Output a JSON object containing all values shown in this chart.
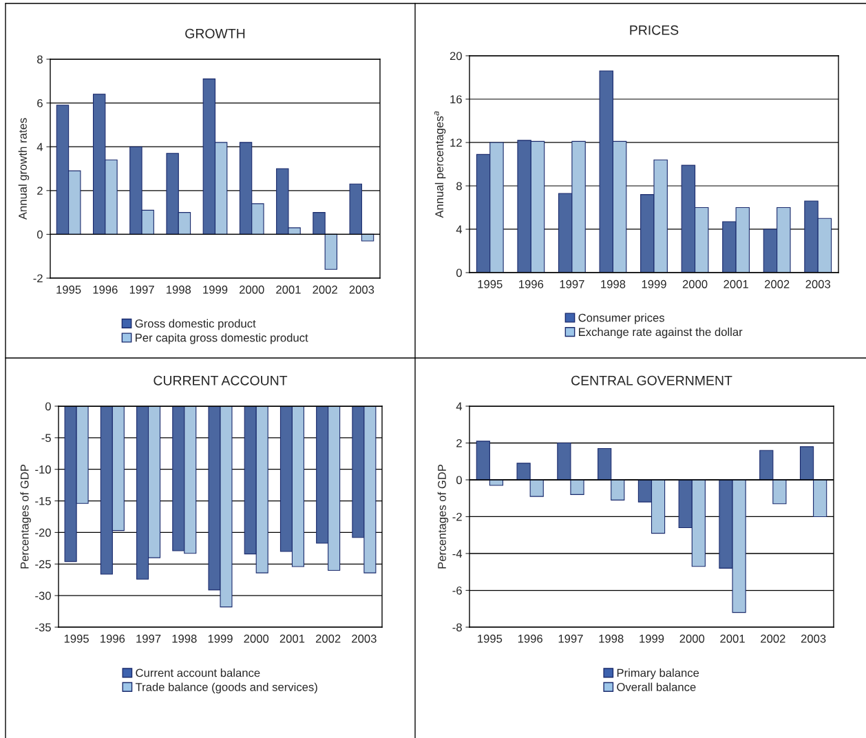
{
  "chart_data": [
    {
      "type": "bar",
      "title": "GROWTH",
      "ylabel": "Annual growth rates",
      "categories": [
        "1995",
        "1996",
        "1997",
        "1998",
        "1999",
        "2000",
        "2001",
        "2002",
        "2003"
      ],
      "series": [
        {
          "name": "Gross domestic product",
          "color": "#3d62ae",
          "values": [
            5.9,
            6.4,
            4.0,
            3.7,
            7.1,
            4.2,
            3.0,
            1.0,
            2.3
          ]
        },
        {
          "name": "Per capita gross domestic product",
          "color": "#9dc6e9",
          "values": [
            2.9,
            3.4,
            1.1,
            1.0,
            4.2,
            1.4,
            0.3,
            -1.6,
            -0.3
          ]
        }
      ],
      "ylim": [
        -2,
        8
      ],
      "yticks": [
        -2,
        0,
        2,
        4,
        6,
        8
      ],
      "grid": "y",
      "legend": "bottom"
    },
    {
      "type": "bar",
      "title": "PRICES",
      "ylabel": "Annual percentages$^{a}$",
      "categories": [
        "1995",
        "1996",
        "1997",
        "1998",
        "1999",
        "2000",
        "2001",
        "2002",
        "2003"
      ],
      "series": [
        {
          "name": "Consumer prices",
          "color": "#3d62ae",
          "values": [
            10.9,
            12.2,
            7.3,
            18.6,
            7.2,
            9.9,
            4.7,
            4.0,
            6.6
          ]
        },
        {
          "name": "Exchange rate against the dollar",
          "color": "#9dc6e9",
          "values": [
            12.0,
            12.1,
            12.1,
            12.1,
            10.4,
            6.0,
            6.0,
            6.0,
            5.0
          ]
        }
      ],
      "ylim": [
        0,
        20
      ],
      "yticks": [
        0,
        4,
        8,
        12,
        16,
        20
      ],
      "grid": "y",
      "legend": "bottom"
    },
    {
      "type": "bar",
      "title": "CURRENT ACCOUNT",
      "ylabel": "Percentages of GDP",
      "categories": [
        "1995",
        "1996",
        "1997",
        "1998",
        "1999",
        "2000",
        "2001",
        "2002",
        "2003"
      ],
      "series": [
        {
          "name": "Current account balance",
          "color": "#3d62ae",
          "values": [
            -24.6,
            -26.6,
            -27.4,
            -22.9,
            -29.1,
            -23.4,
            -23.0,
            -21.7,
            -20.8
          ]
        },
        {
          "name": "Trade balance (goods and services)",
          "color": "#9dc6e9",
          "values": [
            -15.4,
            -19.7,
            -24.0,
            -23.3,
            -31.8,
            -26.4,
            -25.4,
            -26.0,
            -26.4
          ]
        }
      ],
      "ylim": [
        -35,
        0
      ],
      "yticks": [
        -35,
        -30,
        -25,
        -20,
        -15,
        -10,
        -5,
        0
      ],
      "grid": "y",
      "legend": "bottom"
    },
    {
      "type": "bar",
      "title": "CENTRAL GOVERNMENT",
      "ylabel": "Percentages of GDP",
      "categories": [
        "1995",
        "1996",
        "1997",
        "1998",
        "1999",
        "2000",
        "2001",
        "2002",
        "2003"
      ],
      "series": [
        {
          "name": "Primary balance",
          "color": "#3d62ae",
          "values": [
            2.1,
            0.9,
            2.0,
            1.7,
            -1.2,
            -2.6,
            -4.8,
            1.6,
            1.8
          ]
        },
        {
          "name": "Overall balance",
          "color": "#9dc6e9",
          "values": [
            -0.3,
            -0.9,
            -0.8,
            -1.1,
            -2.9,
            -4.7,
            -7.2,
            -1.3,
            -2.0
          ]
        }
      ],
      "ylim": [
        -8,
        4
      ],
      "yticks": [
        -8,
        -6,
        -4,
        -2,
        0,
        2,
        4
      ],
      "grid": "y",
      "legend": "bottom"
    }
  ]
}
